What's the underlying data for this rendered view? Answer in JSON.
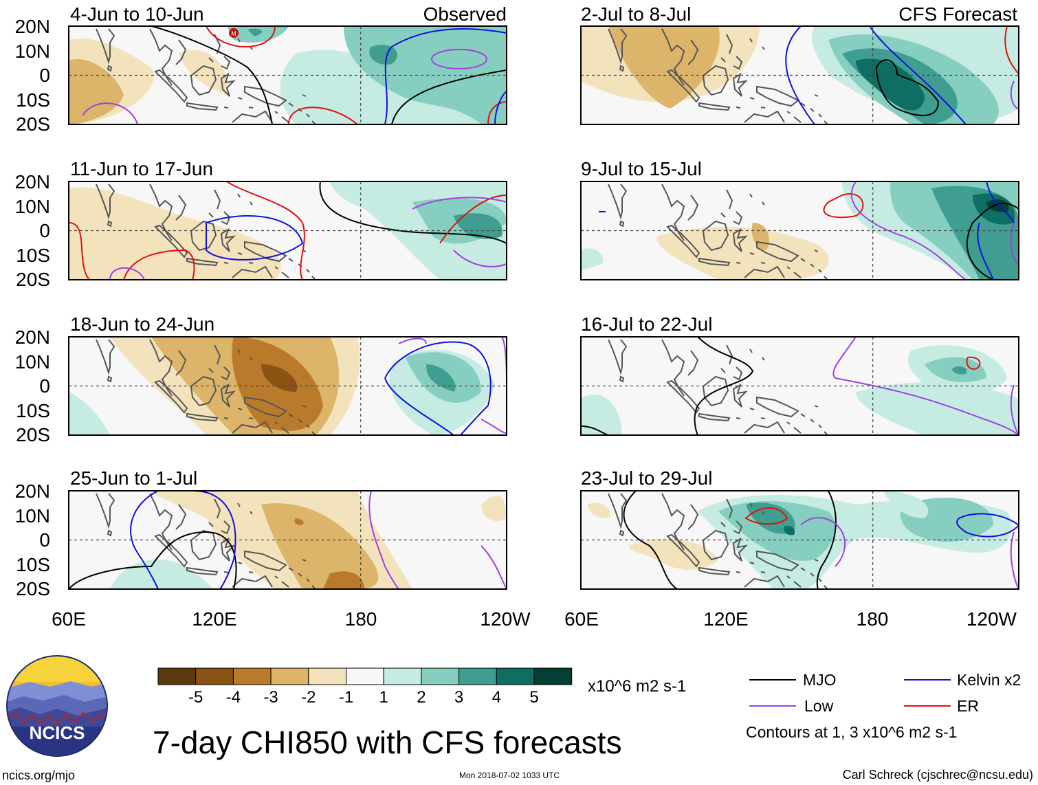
{
  "panels": [
    {
      "id": "obs-1",
      "date": "4-Jun to 10-Jun",
      "tag": "Observed"
    },
    {
      "id": "obs-2",
      "date": "11-Jun to 17-Jun",
      "tag": ""
    },
    {
      "id": "obs-3",
      "date": "18-Jun to 24-Jun",
      "tag": ""
    },
    {
      "id": "obs-4",
      "date": "25-Jun to 1-Jul",
      "tag": ""
    },
    {
      "id": "fc-1",
      "date": "2-Jul to 8-Jul",
      "tag": "CFS Forecast"
    },
    {
      "id": "fc-2",
      "date": "9-Jul to 15-Jul",
      "tag": ""
    },
    {
      "id": "fc-3",
      "date": "16-Jul to 22-Jul",
      "tag": ""
    },
    {
      "id": "fc-4",
      "date": "23-Jul to 29-Jul",
      "tag": ""
    }
  ],
  "axes": {
    "lat_labels": [
      "20N",
      "10N",
      "0",
      "10S",
      "20S"
    ],
    "lon_labels": [
      "60E",
      "120E",
      "180",
      "120W"
    ]
  },
  "colorbar": {
    "labels": [
      "-5",
      "-4",
      "-3",
      "-2",
      "-1",
      "1",
      "2",
      "3",
      "4",
      "5"
    ],
    "units": "x10^6 m2 s-1",
    "colors": [
      "#5a3a0c",
      "#8a5314",
      "#b97a2c",
      "#dcb56a",
      "#f3e3bd",
      "#f7f7f7",
      "#c6ebe2",
      "#86cfc0",
      "#3f9e8f",
      "#0f6e62",
      "#043f36"
    ]
  },
  "legend": {
    "mjo": "MJO",
    "kelvin": "Kelvin x2",
    "low": "Low",
    "er": "ER",
    "note": "Contours at 1, 3 x10^6 m2 s-1",
    "colors": {
      "mjo": "#000000",
      "kelvin": "#1010e0",
      "low": "#a040e0",
      "er": "#e01010"
    }
  },
  "logo": {
    "text": "NCICS"
  },
  "title": "7-day CHI850 with CFS forecasts",
  "footer": {
    "url": "ncics.org/mjo",
    "timestamp": "Mon 2018-07-02 1033 UTC",
    "credit": "Carl Schreck (cjschrec@ncsu.edu)"
  },
  "mjo_marker": "M"
}
